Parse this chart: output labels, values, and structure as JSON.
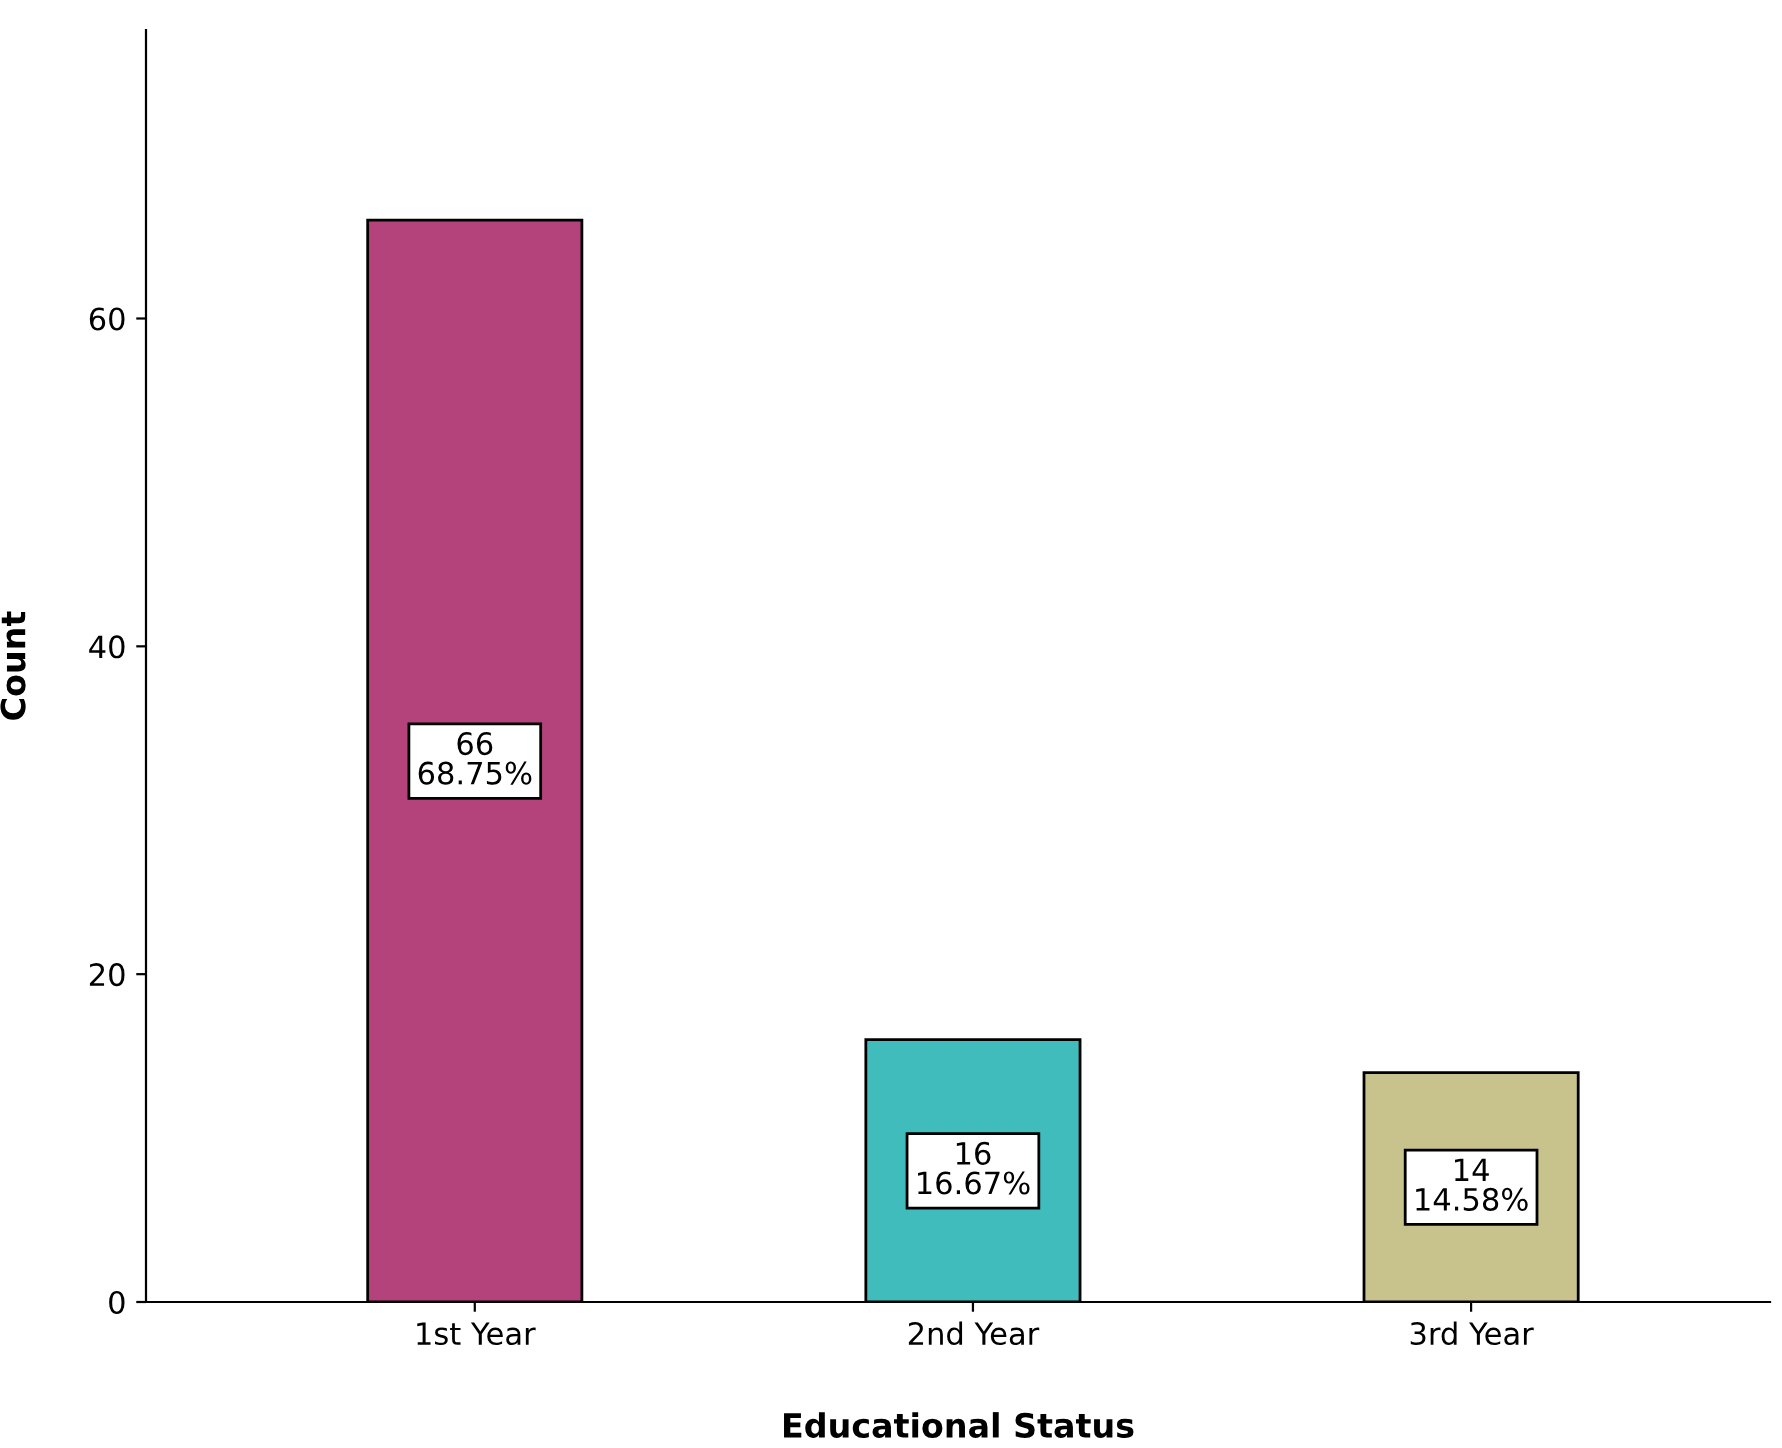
{
  "chart_data": {
    "type": "bar",
    "xlabel": "Educational Status",
    "ylabel": "Count",
    "categories": [
      "1st Year",
      "2nd Year",
      "3rd Year"
    ],
    "values": [
      66,
      16,
      14
    ],
    "colors": [
      "#b3437a",
      "#40bcbc",
      "#c8c28c"
    ],
    "value_labels": [
      "66\n68.75%",
      "16\n16.67%",
      "14\n14.58%"
    ],
    "ylim": [
      0,
      77.6
    ],
    "yticks": [
      0,
      20,
      40,
      60
    ],
    "grid": false,
    "legend": false
  }
}
